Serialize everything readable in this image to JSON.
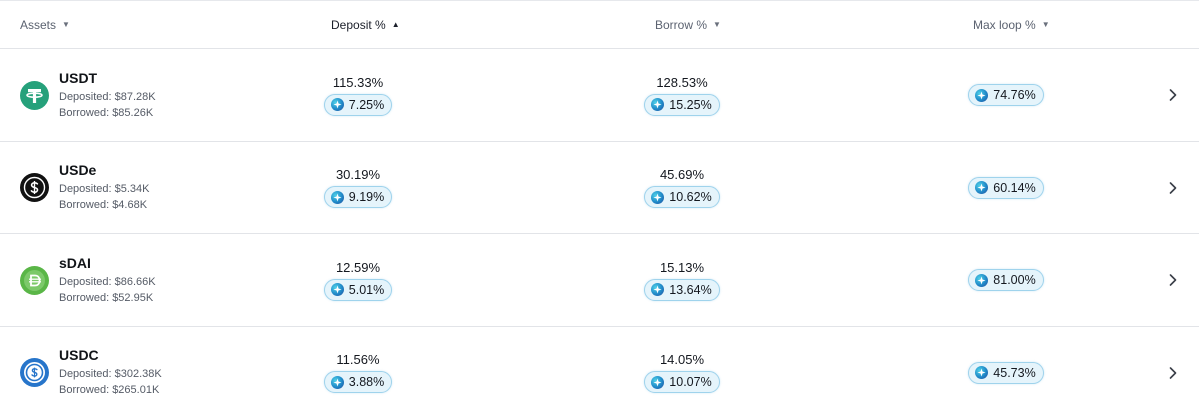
{
  "header": {
    "assets": "Assets",
    "deposit": "Deposit %",
    "borrow": "Borrow %",
    "max_loop": "Max loop %"
  },
  "colors": {
    "pill_bg": "#e5f4fb",
    "pill_border": "#9fd3ec",
    "usdt": "#26a17b",
    "usde": "#111111",
    "sdai": "#5ab647",
    "usdc": "#2775ca"
  },
  "rows": [
    {
      "name": "USDT",
      "icon": "usdt-logo-icon",
      "deposited": "Deposited: $87.28K",
      "borrowed": "Borrowed: $85.26K",
      "deposit_rate": "115.33%",
      "deposit_reward": "7.25%",
      "borrow_rate": "128.53%",
      "borrow_reward": "15.25%",
      "max_loop": "74.76%"
    },
    {
      "name": "USDe",
      "icon": "usde-logo-icon",
      "deposited": "Deposited: $5.34K",
      "borrowed": "Borrowed: $4.68K",
      "deposit_rate": "30.19%",
      "deposit_reward": "9.19%",
      "borrow_rate": "45.69%",
      "borrow_reward": "10.62%",
      "max_loop": "60.14%"
    },
    {
      "name": "sDAI",
      "icon": "sdai-logo-icon",
      "deposited": "Deposited: $86.66K",
      "borrowed": "Borrowed: $52.95K",
      "deposit_rate": "12.59%",
      "deposit_reward": "5.01%",
      "borrow_rate": "15.13%",
      "borrow_reward": "13.64%",
      "max_loop": "81.00%"
    },
    {
      "name": "USDC",
      "icon": "usdc-logo-icon",
      "deposited": "Deposited: $302.38K",
      "borrowed": "Borrowed: $265.01K",
      "deposit_rate": "11.56%",
      "deposit_reward": "3.88%",
      "borrow_rate": "14.05%",
      "borrow_reward": "10.07%",
      "max_loop": "45.73%"
    }
  ]
}
